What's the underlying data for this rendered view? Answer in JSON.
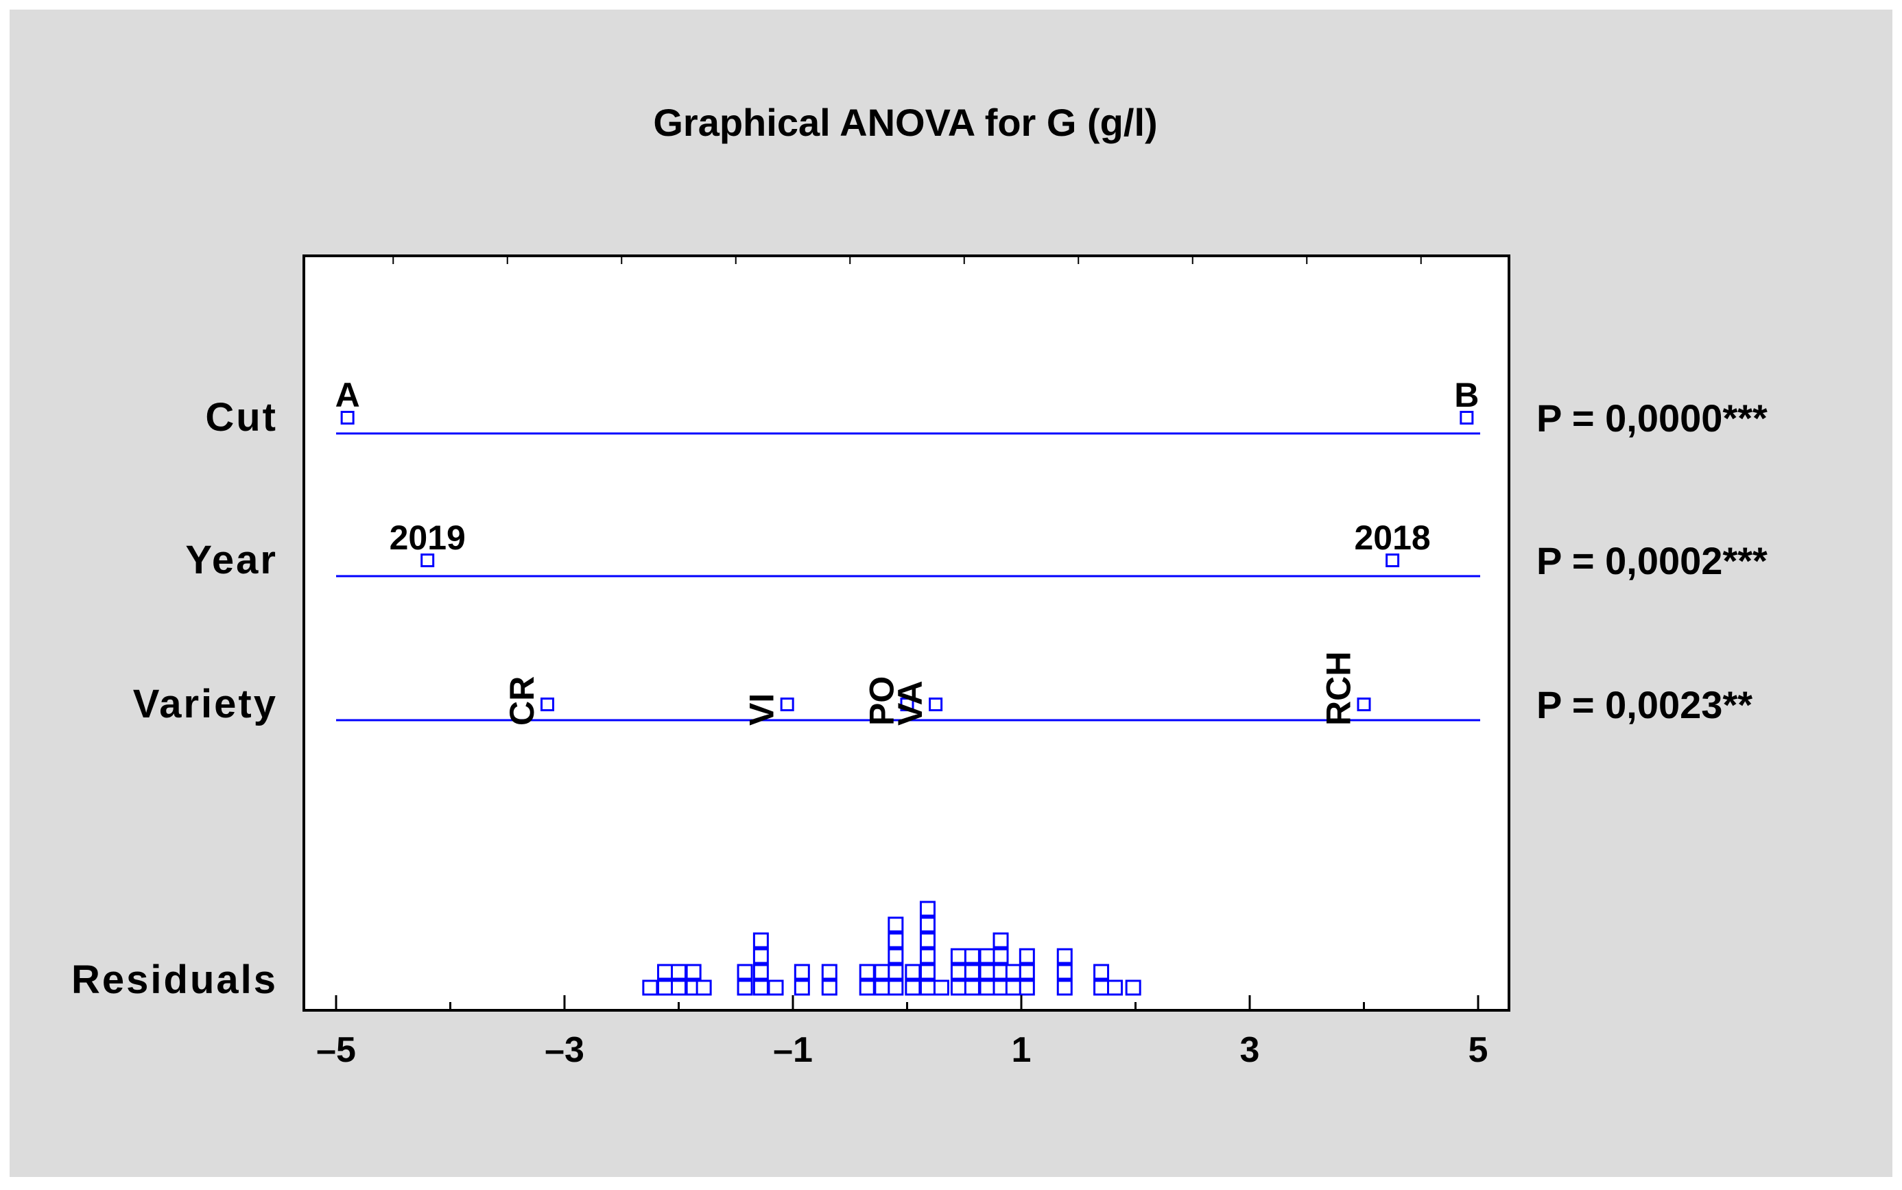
{
  "chart_data": {
    "type": "scatter",
    "title": "Graphical ANOVA for G (g/l)",
    "xlabel": "",
    "ylabel": "",
    "xlim": [
      -5.3,
      5.3
    ],
    "x_ticks": [
      -5,
      -3,
      -1,
      1,
      3,
      5
    ],
    "x_tick_labels": [
      "–5",
      "–3",
      "–1",
      "1",
      "3",
      "5"
    ],
    "grid": false,
    "series_color": "#0000ff",
    "factors": [
      {
        "name": "Cut",
        "p_value": "P = 0,0000***",
        "levels": [
          {
            "label": "A",
            "x": -4.9,
            "rotated": false
          },
          {
            "label": "B",
            "x": 4.9,
            "rotated": false
          }
        ]
      },
      {
        "name": "Year",
        "p_value": "P = 0,0002***",
        "levels": [
          {
            "label": "2019",
            "x": -4.2,
            "rotated": false
          },
          {
            "label": "2018",
            "x": 4.25,
            "rotated": false
          }
        ]
      },
      {
        "name": "Variety",
        "p_value": "P = 0,0023**",
        "levels": [
          {
            "label": "CR",
            "x": -3.15,
            "rotated": true
          },
          {
            "label": "VI",
            "x": -1.05,
            "rotated": true
          },
          {
            "label": "PO",
            "x": 0.0,
            "rotated": true
          },
          {
            "label": "VA",
            "x": 0.25,
            "rotated": true
          },
          {
            "label": "RCH",
            "x": 4.0,
            "rotated": true
          }
        ]
      }
    ],
    "residuals": {
      "name": "Residuals",
      "bin_width": 0.13,
      "counts": [
        {
          "x": -2.25,
          "n": 1
        },
        {
          "x": -2.12,
          "n": 2
        },
        {
          "x": -2.0,
          "n": 2
        },
        {
          "x": -1.87,
          "n": 2
        },
        {
          "x": -1.78,
          "n": 1
        },
        {
          "x": -1.42,
          "n": 2
        },
        {
          "x": -1.28,
          "n": 4
        },
        {
          "x": -1.15,
          "n": 1
        },
        {
          "x": -0.92,
          "n": 2
        },
        {
          "x": -0.68,
          "n": 2
        },
        {
          "x": -0.35,
          "n": 2
        },
        {
          "x": -0.22,
          "n": 2
        },
        {
          "x": -0.1,
          "n": 5
        },
        {
          "x": 0.05,
          "n": 2
        },
        {
          "x": 0.18,
          "n": 6
        },
        {
          "x": 0.3,
          "n": 1
        },
        {
          "x": 0.45,
          "n": 3
        },
        {
          "x": 0.57,
          "n": 3
        },
        {
          "x": 0.7,
          "n": 3
        },
        {
          "x": 0.82,
          "n": 4
        },
        {
          "x": 0.93,
          "n": 2
        },
        {
          "x": 1.05,
          "n": 3
        },
        {
          "x": 1.38,
          "n": 3
        },
        {
          "x": 1.7,
          "n": 2
        },
        {
          "x": 1.82,
          "n": 1
        },
        {
          "x": 1.98,
          "n": 1
        }
      ]
    }
  }
}
